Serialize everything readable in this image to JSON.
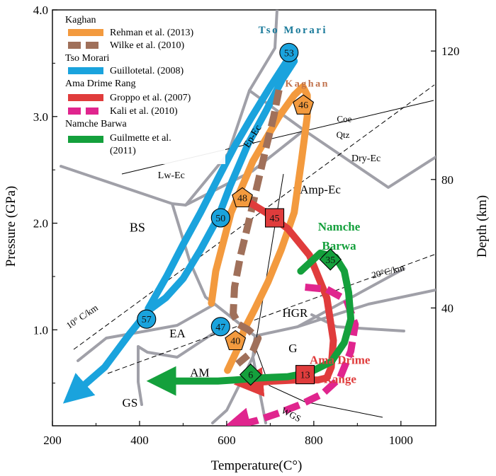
{
  "chart_data": {
    "type": "line",
    "title": "",
    "xlabel": "Temperature(C°)",
    "ylabel": "Pressure (GPa)",
    "y2label": "Depth (km)",
    "xlim": [
      200,
      1080
    ],
    "ylim": [
      0.1,
      4.0
    ],
    "x_ticks": [
      200,
      400,
      600,
      800,
      1000
    ],
    "y_ticks": [
      1.0,
      2.0,
      3.0,
      4.0
    ],
    "y_tick_labels": [
      "1.0",
      "2.0",
      "3.0",
      "4.0"
    ],
    "y2_ticks": [
      40,
      80,
      120
    ],
    "y2_per_gpa": 33.2,
    "legend": {
      "position": "top-left",
      "groups": [
        {
          "title": "Kaghan",
          "entries": [
            {
              "name": "Rehman et al. (2013)",
              "color": "#F39A3E",
              "dash": false
            },
            {
              "name": "Wilke et al. (2010)",
              "color": "#A0705A",
              "dash": true
            }
          ]
        },
        {
          "title": "Tso Morari",
          "entries": [
            {
              "name": "Guillotetal. (2008)",
              "color": "#1AA3DD",
              "dash": false
            }
          ]
        },
        {
          "title": "Ama Drime Rang",
          "entries": [
            {
              "name": "Groppo et al. (2007)",
              "color": "#E03C3C",
              "dash": false
            },
            {
              "name": "Kali et al. (2010)",
              "color": "#E0258E",
              "dash": true
            }
          ]
        },
        {
          "title": "Namche Barwa",
          "entries": [
            {
              "name": "Guilmette et al.",
              "name2": "(2011)",
              "color": "#14A03C",
              "dash": false
            }
          ]
        }
      ]
    },
    "series": [
      {
        "name": "Tso Morari (Guillot et al. 2008)",
        "color": "#1AA3DD",
        "dash": false,
        "x": [
          420,
          462,
          500,
          540,
          580,
          618,
          658,
          700,
          735,
          748,
          755,
          728,
          690,
          650,
          608,
          580,
          540,
          500,
          460,
          420,
          375,
          320,
          250
        ],
        "y": [
          1.2,
          1.5,
          1.8,
          2.1,
          2.42,
          2.72,
          3.0,
          3.28,
          3.5,
          3.59,
          3.52,
          3.35,
          3.05,
          2.75,
          2.35,
          2.05,
          1.75,
          1.48,
          1.3,
          1.18,
          0.95,
          0.65,
          0.4
        ]
      },
      {
        "name": "Kaghan (Rehman et al. 2013)",
        "color": "#F39A3E",
        "dash": false,
        "x": [
          565,
          575,
          610,
          660,
          720,
          755,
          775,
          785,
          785,
          772,
          755,
          725,
          695,
          665,
          640,
          625,
          602
        ],
        "y": [
          1.25,
          1.55,
          2.1,
          2.58,
          3.0,
          3.2,
          3.28,
          3.2,
          3.0,
          2.6,
          2.1,
          1.75,
          1.45,
          1.2,
          1.0,
          0.82,
          0.62
        ]
      },
      {
        "name": "Kaghan (Wilke et al. 2010)",
        "color": "#A0705A",
        "dash": true,
        "x": [
          720,
          708,
          690,
          670,
          650,
          632,
          618,
          615,
          628,
          650,
          672,
          660,
          625
        ],
        "y": [
          3.25,
          3.0,
          2.7,
          2.35,
          2.0,
          1.7,
          1.4,
          1.15,
          1.05,
          1.0,
          0.92,
          0.8,
          0.68
        ]
      },
      {
        "name": "Ama Drime (Groppo et al. 2007)",
        "color": "#E03C3C",
        "dash": false,
        "x": [
          630,
          690,
          740,
          790,
          830,
          845,
          840,
          830,
          810,
          760,
          710,
          650
        ],
        "y": [
          2.25,
          2.1,
          1.95,
          1.7,
          1.3,
          0.9,
          0.65,
          0.55,
          0.53,
          0.53,
          0.52,
          0.5
        ]
      },
      {
        "name": "Ama Drime (Kali et al. 2010)",
        "color": "#E0258E",
        "dash": true,
        "x": [
          780,
          830,
          875,
          895,
          885,
          860,
          820,
          770,
          720,
          670,
          620
        ],
        "y": [
          1.4,
          1.38,
          1.28,
          1.05,
          0.8,
          0.55,
          0.4,
          0.3,
          0.22,
          0.15,
          0.1
        ]
      },
      {
        "name": "Namche Barwa (Guilmette et al. 2011)",
        "color": "#14A03C",
        "dash": false,
        "x": [
          770,
          815,
          850,
          870,
          880,
          885,
          870,
          840,
          790,
          740,
          680,
          620,
          580,
          520,
          450
        ],
        "y": [
          1.55,
          1.72,
          1.68,
          1.55,
          1.35,
          1.1,
          0.88,
          0.7,
          0.6,
          0.56,
          0.55,
          0.53,
          0.52,
          0.52,
          0.52
        ]
      }
    ],
    "point_markers": [
      {
        "label": "53",
        "shape": "circle",
        "x": 743,
        "y": 3.6,
        "color": "#1AA3DD"
      },
      {
        "label": "50",
        "shape": "circle",
        "x": 586,
        "y": 2.05,
        "color": "#1AA3DD"
      },
      {
        "label": "57",
        "shape": "circle",
        "x": 416,
        "y": 1.1,
        "color": "#1AA3DD"
      },
      {
        "label": "47",
        "shape": "circle",
        "x": 586,
        "y": 1.03,
        "color": "#1AA3DD"
      },
      {
        "label": "46",
        "shape": "pentagon",
        "x": 776,
        "y": 3.11,
        "color": "#F39A3E"
      },
      {
        "label": "48",
        "shape": "pentagon",
        "x": 636,
        "y": 2.24,
        "color": "#F39A3E"
      },
      {
        "label": "40",
        "shape": "pentagon",
        "x": 620,
        "y": 0.9,
        "color": "#F39A3E"
      },
      {
        "label": "45",
        "shape": "square",
        "x": 710,
        "y": 2.05,
        "color": "#E03C3C"
      },
      {
        "label": "13",
        "shape": "square",
        "x": 780,
        "y": 0.58,
        "color": "#E03C3C"
      },
      {
        "label": "35",
        "shape": "diamond",
        "x": 838,
        "y": 1.66,
        "color": "#14A03C"
      },
      {
        "label": "6",
        "shape": "diamond",
        "x": 655,
        "y": 0.58,
        "color": "#14A03C"
      }
    ],
    "annotations": [
      {
        "text": "Tso Morari",
        "x": 752,
        "y": 3.78,
        "color": "#1A7A9A",
        "size": 15,
        "bold": true,
        "spaced": true
      },
      {
        "text": "Kaghan",
        "x": 785,
        "y": 3.28,
        "color": "#C0704A",
        "size": 14,
        "bold": true,
        "spaced": true
      },
      {
        "text": "Namche",
        "x": 858,
        "y": 1.93,
        "color": "#14A03C",
        "size": 17,
        "bold": true
      },
      {
        "text": "Barwa",
        "x": 858,
        "y": 1.75,
        "color": "#14A03C",
        "size": 17,
        "bold": true
      },
      {
        "text": "Ama Drime",
        "x": 860,
        "y": 0.68,
        "color": "#E03C3C",
        "size": 17,
        "bold": true
      },
      {
        "text": "Range",
        "x": 860,
        "y": 0.5,
        "color": "#E03C3C",
        "size": 17,
        "bold": true
      },
      {
        "text": "BS",
        "x": 395,
        "y": 1.92,
        "color": "#000000",
        "size": 18
      },
      {
        "text": "EA",
        "x": 487,
        "y": 0.93,
        "color": "#000000",
        "size": 17
      },
      {
        "text": "AM",
        "x": 538,
        "y": 0.56,
        "color": "#000000",
        "size": 17
      },
      {
        "text": "GS",
        "x": 378,
        "y": 0.28,
        "color": "#000000",
        "size": 17
      },
      {
        "text": "HGR",
        "x": 757,
        "y": 1.12,
        "color": "#000000",
        "size": 17
      },
      {
        "text": "G",
        "x": 752,
        "y": 0.79,
        "color": "#000000",
        "size": 17
      },
      {
        "text": "Amp-Ec",
        "x": 815,
        "y": 2.28,
        "color": "#000000",
        "size": 17
      },
      {
        "text": "Lw-Ec",
        "x": 473,
        "y": 2.42,
        "color": "#000000",
        "size": 14
      },
      {
        "text": "Dry-Ec",
        "x": 920,
        "y": 2.58,
        "color": "#000000",
        "size": 14
      },
      {
        "text": "Ep-Ec",
        "x": 665,
        "y": 2.8,
        "color": "#000000",
        "size": 14,
        "rotate": -58
      },
      {
        "text": "Coe",
        "x": 870,
        "y": 2.95,
        "color": "#000000",
        "size": 13
      },
      {
        "text": "Qtz",
        "x": 867,
        "y": 2.8,
        "color": "#000000",
        "size": 13
      },
      {
        "text": "10° C/km",
        "x": 272,
        "y": 1.1,
        "color": "#000000",
        "size": 13,
        "rotate": -34
      },
      {
        "text": "20°C/km",
        "x": 972,
        "y": 1.52,
        "color": "#000000",
        "size": 13,
        "rotate": -14
      },
      {
        "text": "WGS",
        "x": 745,
        "y": 0.18,
        "color": "#000000",
        "size": 13,
        "rotate": 28
      }
    ]
  }
}
